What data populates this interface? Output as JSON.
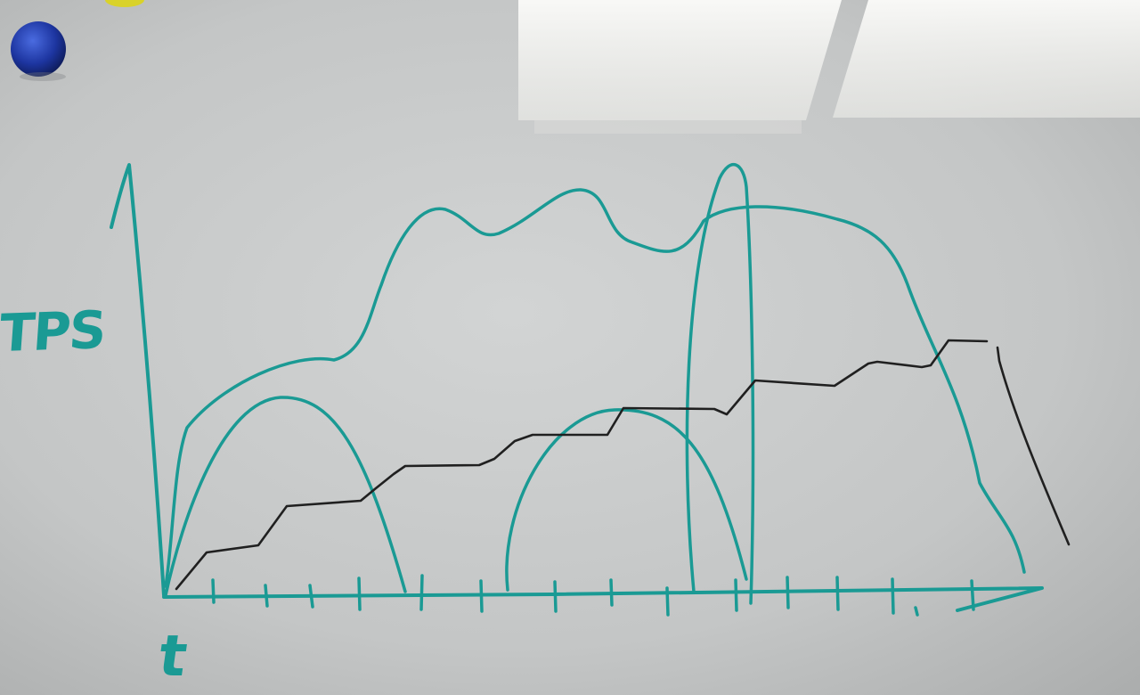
{
  "y_axis_label": "TPS",
  "x_axis_label": "t",
  "colors": {
    "marker_teal": "#1a9a94",
    "marker_black": "#202020",
    "magnet_blue": "#1d35a0",
    "magnet_yellow": "#d9d22a"
  },
  "axis": {
    "tick_count": 15
  }
}
